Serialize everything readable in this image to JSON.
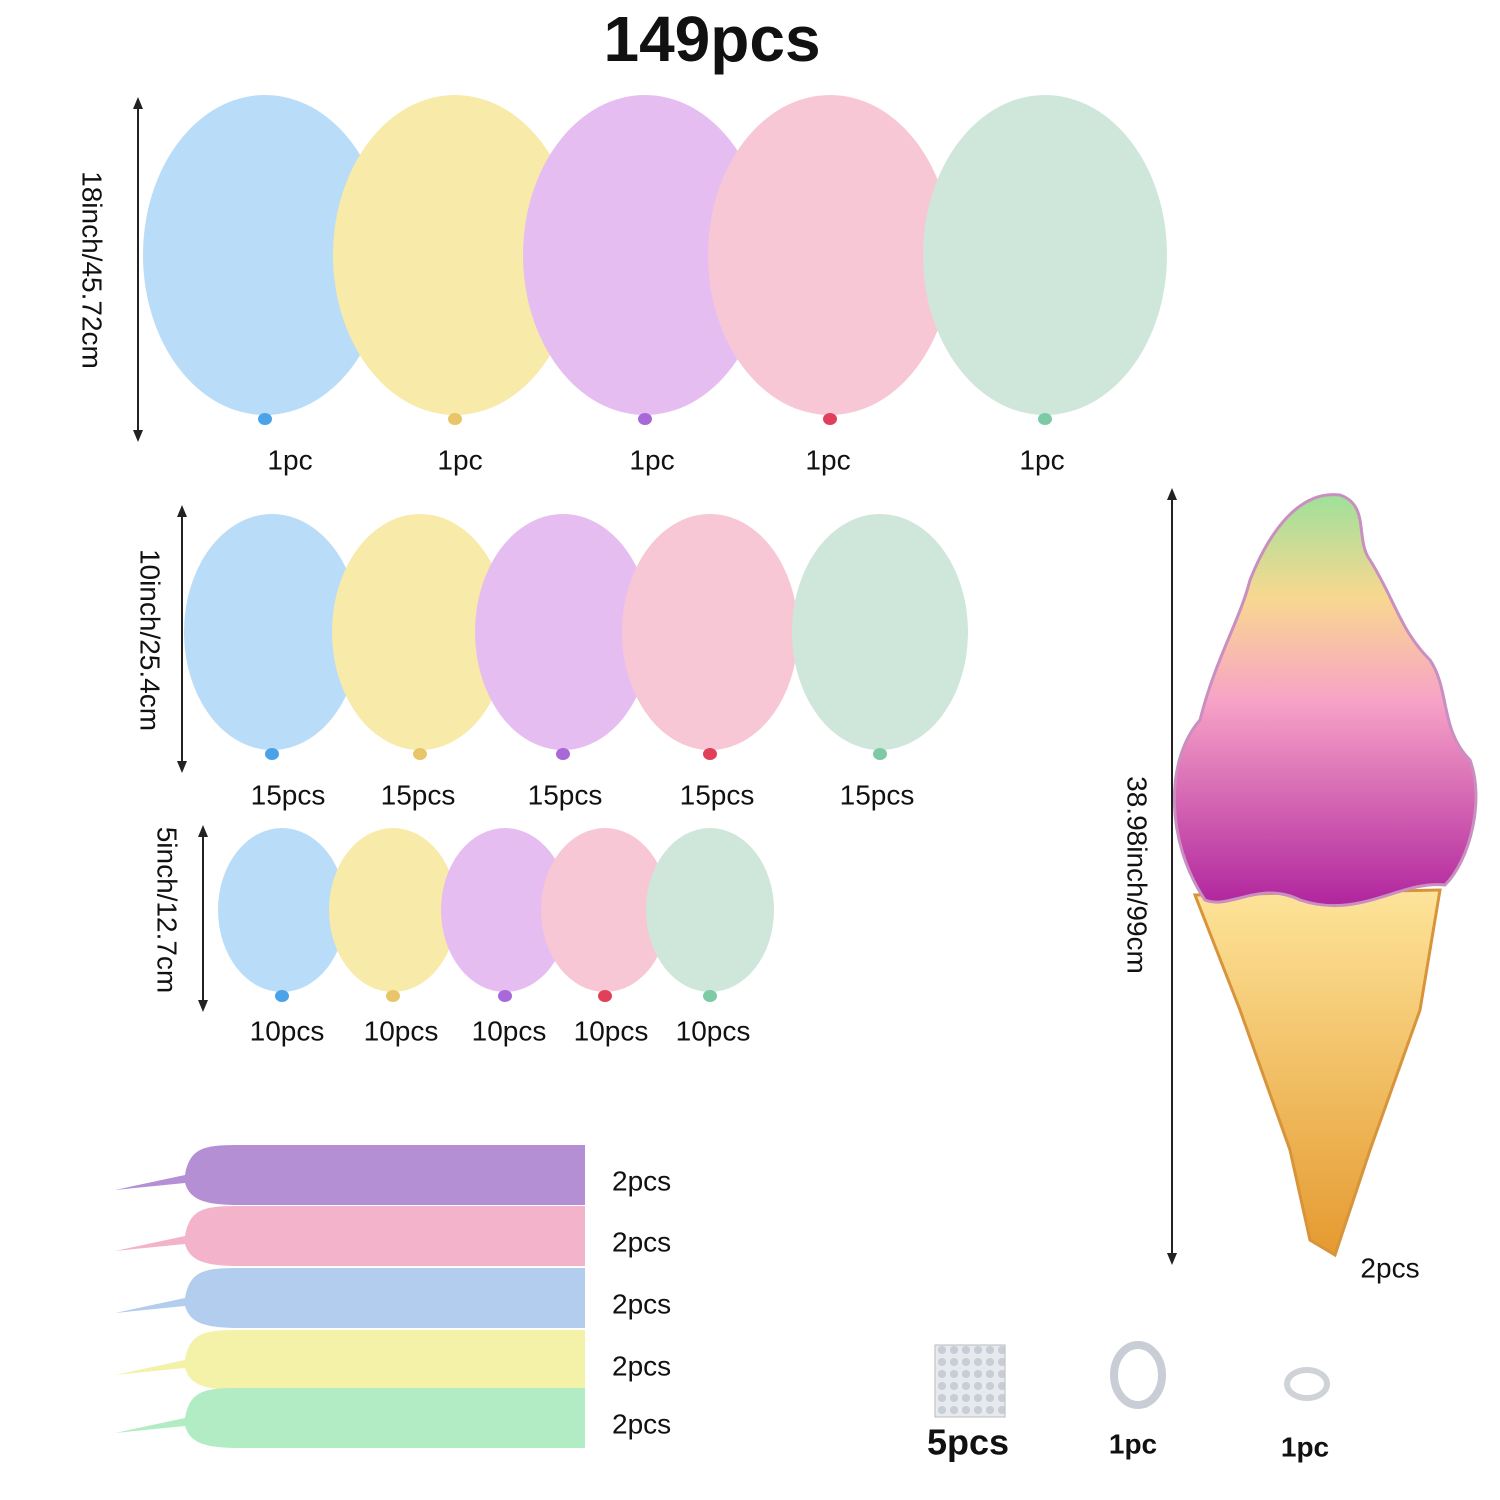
{
  "title": "149pcs",
  "rows": [
    {
      "size": "18inch/45.72cm",
      "counts": [
        "1pc",
        "1pc",
        "1pc",
        "1pc",
        "1pc"
      ]
    },
    {
      "size": "10inch/25.4cm",
      "counts": [
        "15pcs",
        "15pcs",
        "15pcs",
        "15pcs",
        "15pcs"
      ]
    },
    {
      "size": "5inch/12.7cm",
      "counts": [
        "10pcs",
        "10pcs",
        "10pcs",
        "10pcs",
        "10pcs"
      ]
    }
  ],
  "long_balloons": {
    "counts": [
      "2pcs",
      "2pcs",
      "2pcs",
      "2pcs",
      "2pcs"
    ]
  },
  "ice_cream": {
    "size": "38.98inch/99cm",
    "count": "2pcs"
  },
  "accessories": [
    "5pcs",
    "1pc",
    "1pc"
  ]
}
